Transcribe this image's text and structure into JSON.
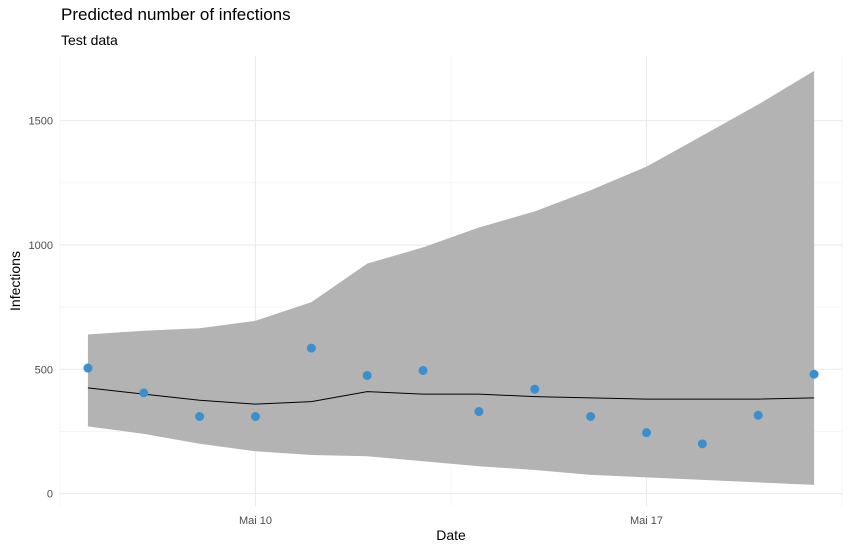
{
  "chart_data": {
    "type": "line",
    "title": "Predicted number of infections",
    "subtitle": "Test data",
    "xlabel": "Date",
    "ylabel": "Infections",
    "x_tick_labels": [
      "Mai 10",
      "Mai 17"
    ],
    "y_tick_labels": [
      "0",
      "500",
      "1000",
      "1500"
    ],
    "ylim": [
      -50,
      1760
    ],
    "grid": true,
    "x": [
      "2020-05-07",
      "2020-05-08",
      "2020-05-09",
      "2020-05-10",
      "2020-05-11",
      "2020-05-12",
      "2020-05-13",
      "2020-05-14",
      "2020-05-15",
      "2020-05-16",
      "2020-05-17",
      "2020-05-18",
      "2020-05-19",
      "2020-05-20"
    ],
    "series": [
      {
        "role": "prediction",
        "color": "#000000",
        "values": [
          425,
          400,
          375,
          360,
          370,
          410,
          400,
          400,
          390,
          385,
          380,
          380,
          380,
          385
        ]
      },
      {
        "role": "interval_upper",
        "values": [
          640,
          655,
          665,
          695,
          770,
          925,
          990,
          1070,
          1135,
          1220,
          1315,
          1440,
          1565,
          1700
        ]
      },
      {
        "role": "interval_lower",
        "values": [
          270,
          240,
          200,
          170,
          155,
          150,
          130,
          110,
          95,
          75,
          65,
          55,
          45,
          35
        ]
      },
      {
        "role": "observed",
        "color": "#3a8fcc",
        "values": [
          505,
          405,
          310,
          310,
          585,
          475,
          495,
          330,
          420,
          310,
          245,
          200,
          315,
          480
        ]
      }
    ],
    "band_color": "#b3b3b3"
  }
}
